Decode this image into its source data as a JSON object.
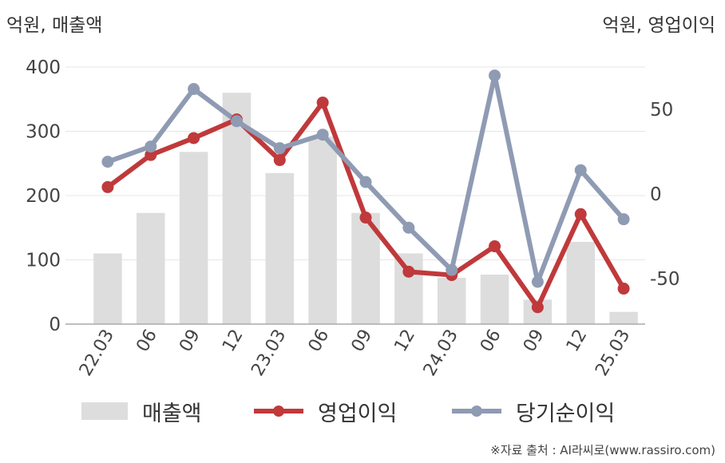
{
  "header": {
    "left_unit": "억원, 매출액",
    "right_unit": "억원, 영업이익"
  },
  "chart_data": {
    "type": "bar",
    "categories": [
      "22.03",
      "06",
      "09",
      "12",
      "23.03",
      "06",
      "09",
      "12",
      "24.03",
      "06",
      "09",
      "12",
      "25.03"
    ],
    "y_left": {
      "lim": [
        0,
        400
      ],
      "ticks": [
        0,
        100,
        200,
        300,
        400
      ]
    },
    "y_right": {
      "lim": [
        -77,
        75
      ],
      "ticks": [
        -50,
        0,
        50
      ]
    },
    "grid": true,
    "legend_position": "bottom",
    "series": [
      {
        "name": "매출액",
        "type": "bar",
        "axis": "left",
        "color": "#dddddd",
        "values": [
          110,
          173,
          268,
          360,
          235,
          292,
          173,
          110,
          72,
          77,
          38,
          128,
          19
        ]
      },
      {
        "name": "영업이익",
        "type": "line",
        "axis": "right",
        "color": "#c0393b",
        "values": [
          4,
          23,
          33,
          44,
          20,
          54,
          -14,
          -46,
          -48,
          -31,
          -67,
          -12,
          -56
        ]
      },
      {
        "name": "당기순이익",
        "type": "line",
        "axis": "right",
        "color": "#8f9bb3",
        "values": [
          19,
          28,
          62,
          43,
          27,
          35,
          7,
          -20,
          -45,
          70,
          -52,
          14,
          -15
        ]
      }
    ]
  },
  "source_note": "※자료 출처 : AI라씨로(www.rassiro.com)"
}
